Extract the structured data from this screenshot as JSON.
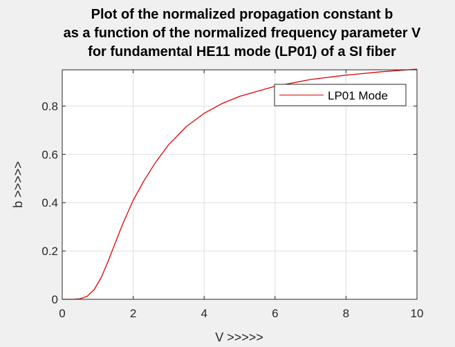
{
  "chart_data": {
    "type": "line",
    "title": [
      "Plot of the normalized propagation constant b",
      "as a function of the normalized frequency parameter V",
      "for fundamental HE11 mode (LP01) of a SI fiber"
    ],
    "xlabel": "V >>>>>",
    "ylabel": "b >>>>>",
    "xlim": [
      0,
      10
    ],
    "ylim": [
      0,
      0.95
    ],
    "xticks": [
      0,
      2,
      4,
      6,
      8,
      10
    ],
    "xtick_labels": [
      "0",
      "2",
      "4",
      "6",
      "8",
      "10"
    ],
    "yticks": [
      0,
      0.2,
      0.4,
      0.6,
      0.8
    ],
    "ytick_labels": [
      "0",
      "0.2",
      "0.4",
      "0.6",
      "0.8"
    ],
    "grid": true,
    "legend_position": "top-right",
    "series": [
      {
        "name": "LP01 Mode",
        "color": "#e00000",
        "x": [
          0,
          0.3,
          0.5,
          0.7,
          0.9,
          1.1,
          1.3,
          1.5,
          1.7,
          2.0,
          2.3,
          2.6,
          3.0,
          3.5,
          4.0,
          4.5,
          5.0,
          6.0,
          7.0,
          8.0,
          9.0,
          10.0
        ],
        "y": [
          0,
          0.0,
          0.002,
          0.012,
          0.04,
          0.09,
          0.16,
          0.235,
          0.31,
          0.41,
          0.49,
          0.56,
          0.64,
          0.715,
          0.77,
          0.81,
          0.84,
          0.882,
          0.91,
          0.928,
          0.942,
          0.953
        ]
      }
    ]
  }
}
